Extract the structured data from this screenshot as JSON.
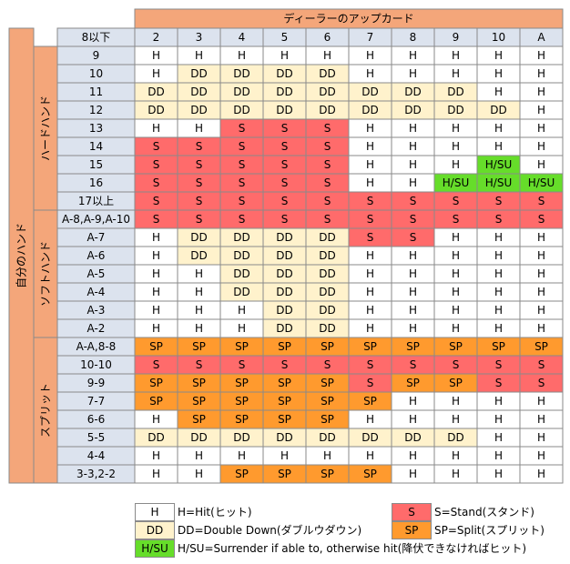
{
  "dealer_header": "ディーラーのアップカード",
  "player_header": "自分のハンド",
  "corner_label": "8以下",
  "dealer_cards": [
    "2",
    "3",
    "4",
    "5",
    "6",
    "7",
    "8",
    "9",
    "10",
    "A"
  ],
  "groups": [
    {
      "label": "ハードハンド",
      "rows": [
        {
          "hand": "9",
          "cells": [
            "H",
            "H",
            "H",
            "H",
            "H",
            "H",
            "H",
            "H",
            "H",
            "H"
          ]
        },
        {
          "hand": "10",
          "cells": [
            "H",
            "DD",
            "DD",
            "DD",
            "DD",
            "H",
            "H",
            "H",
            "H",
            "H"
          ]
        },
        {
          "hand": "11",
          "cells": [
            "DD",
            "DD",
            "DD",
            "DD",
            "DD",
            "DD",
            "DD",
            "DD",
            "H",
            "H"
          ]
        },
        {
          "hand": "12",
          "cells": [
            "DD",
            "DD",
            "DD",
            "DD",
            "DD",
            "DD",
            "DD",
            "DD",
            "DD",
            "H"
          ]
        },
        {
          "hand": "13",
          "cells": [
            "H",
            "H",
            "S",
            "S",
            "S",
            "H",
            "H",
            "H",
            "H",
            "H"
          ]
        },
        {
          "hand": "14",
          "cells": [
            "S",
            "S",
            "S",
            "S",
            "S",
            "H",
            "H",
            "H",
            "H",
            "H"
          ]
        },
        {
          "hand": "15",
          "cells": [
            "S",
            "S",
            "S",
            "S",
            "S",
            "H",
            "H",
            "H",
            "H/SU",
            "H"
          ]
        },
        {
          "hand": "16",
          "cells": [
            "S",
            "S",
            "S",
            "S",
            "S",
            "H",
            "H",
            "H/SU",
            "H/SU",
            "H/SU"
          ]
        },
        {
          "hand": "17以上",
          "cells": [
            "S",
            "S",
            "S",
            "S",
            "S",
            "S",
            "S",
            "S",
            "S",
            "S"
          ]
        }
      ]
    },
    {
      "label": "ソフトハンド",
      "rows": [
        {
          "hand": "A-8,A-9,A-10",
          "cells": [
            "S",
            "S",
            "S",
            "S",
            "S",
            "S",
            "S",
            "S",
            "S",
            "S"
          ]
        },
        {
          "hand": "A-7",
          "cells": [
            "H",
            "DD",
            "DD",
            "DD",
            "DD",
            "S",
            "S",
            "H",
            "H",
            "H"
          ]
        },
        {
          "hand": "A-6",
          "cells": [
            "H",
            "DD",
            "DD",
            "DD",
            "DD",
            "H",
            "H",
            "H",
            "H",
            "H"
          ]
        },
        {
          "hand": "A-5",
          "cells": [
            "H",
            "H",
            "DD",
            "DD",
            "DD",
            "H",
            "H",
            "H",
            "H",
            "H"
          ]
        },
        {
          "hand": "A-4",
          "cells": [
            "H",
            "H",
            "DD",
            "DD",
            "DD",
            "H",
            "H",
            "H",
            "H",
            "H"
          ]
        },
        {
          "hand": "A-3",
          "cells": [
            "H",
            "H",
            "H",
            "DD",
            "DD",
            "H",
            "H",
            "H",
            "H",
            "H"
          ]
        },
        {
          "hand": "A-2",
          "cells": [
            "H",
            "H",
            "H",
            "DD",
            "DD",
            "H",
            "H",
            "H",
            "H",
            "H"
          ]
        }
      ]
    },
    {
      "label": "スプリット",
      "rows": [
        {
          "hand": "A-A,8-8",
          "cells": [
            "SP",
            "SP",
            "SP",
            "SP",
            "SP",
            "SP",
            "SP",
            "SP",
            "SP",
            "SP"
          ]
        },
        {
          "hand": "10-10",
          "cells": [
            "S",
            "S",
            "S",
            "S",
            "S",
            "S",
            "S",
            "S",
            "S",
            "S"
          ]
        },
        {
          "hand": "9-9",
          "cells": [
            "SP",
            "SP",
            "SP",
            "SP",
            "SP",
            "S",
            "SP",
            "SP",
            "S",
            "S"
          ]
        },
        {
          "hand": "7-7",
          "cells": [
            "SP",
            "SP",
            "SP",
            "SP",
            "SP",
            "SP",
            "H",
            "H",
            "H",
            "H"
          ]
        },
        {
          "hand": "6-6",
          "cells": [
            "H",
            "SP",
            "SP",
            "SP",
            "SP",
            "H",
            "H",
            "H",
            "H",
            "H"
          ]
        },
        {
          "hand": "5-5",
          "cells": [
            "DD",
            "DD",
            "DD",
            "DD",
            "DD",
            "DD",
            "DD",
            "DD",
            "H",
            "H"
          ]
        },
        {
          "hand": "4-4",
          "cells": [
            "H",
            "H",
            "H",
            "H",
            "H",
            "H",
            "H",
            "H",
            "H",
            "H"
          ]
        },
        {
          "hand": "3-3,2-2",
          "cells": [
            "H",
            "H",
            "SP",
            "SP",
            "SP",
            "SP",
            "H",
            "H",
            "H",
            "H"
          ]
        }
      ]
    }
  ],
  "colors": {
    "H": "#ffffff",
    "DD": "#fff2cc",
    "S": "#ff6b6b",
    "SP": "#ff9a2e",
    "H/SU": "#66dd2a",
    "header": "#f4a67a",
    "label": "#dce3ee",
    "grid": "#8a8a8a"
  },
  "legend": [
    {
      "code": "H",
      "text": "H=Hit(ヒット)"
    },
    {
      "code": "S",
      "text": "S=Stand(スタンド)"
    },
    {
      "code": "DD",
      "text": "DD=Double Down(ダブルウダウン)"
    },
    {
      "code": "SP",
      "text": "SP=Split(スプリット)"
    },
    {
      "code": "H/SU",
      "text": "H/SU=Surrender if able to, otherwise hit(降伏できなければヒット)"
    }
  ],
  "chart_data": {
    "type": "table",
    "title": "ディーラーのアップカード",
    "columns": [
      "2",
      "3",
      "4",
      "5",
      "6",
      "7",
      "8",
      "9",
      "10",
      "A"
    ],
    "row_axis_label": "自分のハンド"
  }
}
